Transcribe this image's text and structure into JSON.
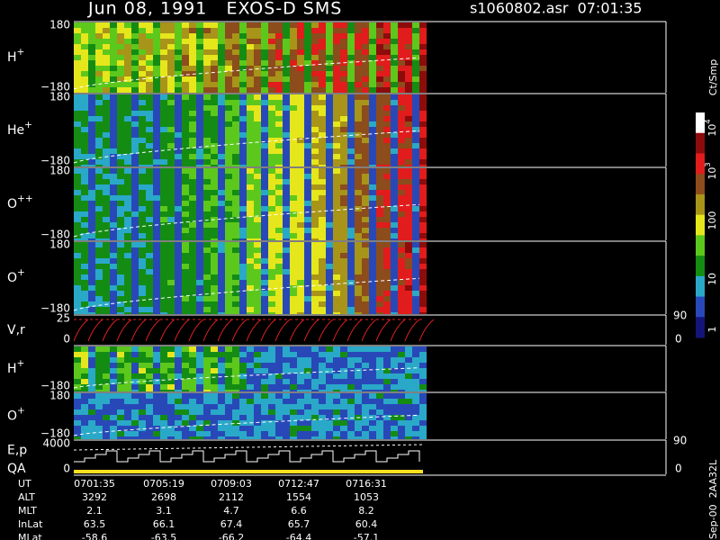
{
  "header": {
    "title": "Jun 08, 1991   EXOS-D SMS",
    "file": "s1060802.asr  07:01:35"
  },
  "panels": [
    {
      "label": {
        "base": "H",
        "sup": "+"
      },
      "top": "180",
      "bottom": "−180"
    },
    {
      "label": {
        "base": "He",
        "sup": "+"
      },
      "top": "180",
      "bottom": "−180"
    },
    {
      "label": {
        "base": "O",
        "sup": "++"
      },
      "top": "180",
      "bottom": "−180"
    },
    {
      "label": {
        "base": "O",
        "sup": "+"
      },
      "top": "180",
      "bottom": "−180"
    },
    {
      "label": {
        "base": "V,r",
        "sup": ""
      },
      "top": "25",
      "bottom": "0",
      "right_top": "90",
      "right_bottom": "0"
    },
    {
      "label": {
        "base": "H",
        "sup": "+"
      },
      "top": "",
      "bottom": "−180"
    },
    {
      "label": {
        "base": "O",
        "sup": "+"
      },
      "top": "180",
      "bottom": "−180"
    },
    {
      "label": {
        "base": "E,p",
        "sup": ""
      },
      "label2": "QA",
      "top": "4000",
      "bottom": "0",
      "right_top": "90",
      "right_bottom": "0"
    }
  ],
  "colorbar": {
    "unit": "Ct/Smp",
    "colors": [
      "#14147a",
      "#2848b8",
      "#2aa8c8",
      "#148c14",
      "#5cc81c",
      "#e6e61c",
      "#a89418",
      "#8c4c1c",
      "#e01c1c",
      "#8c0c0c",
      "#ffffff"
    ],
    "ticks": [
      {
        "base": "10",
        "sup": "4"
      },
      {
        "base": "10",
        "sup": "3"
      },
      {
        "base": "100",
        "sup": ""
      },
      {
        "base": "10",
        "sup": ""
      },
      {
        "base": "1",
        "sup": ""
      }
    ]
  },
  "table": {
    "rows": [
      [
        "UT",
        "0701:35",
        "0705:19",
        "0709:03",
        "0712:47",
        "0716:31"
      ],
      [
        "ALT",
        "3292",
        "2698",
        "2112",
        "1554",
        "1053"
      ],
      [
        "MLT",
        "2.1",
        "3.1",
        "4.7",
        "6.6",
        "8.2"
      ],
      [
        "InLat",
        "63.5",
        "66.1",
        "67.4",
        "65.7",
        "60.4"
      ],
      [
        "MLat",
        "-58.6",
        "-63.5",
        "-66.2",
        "-64.4",
        "-57.1"
      ]
    ]
  },
  "footer": "Sep-00  2AA32L"
}
